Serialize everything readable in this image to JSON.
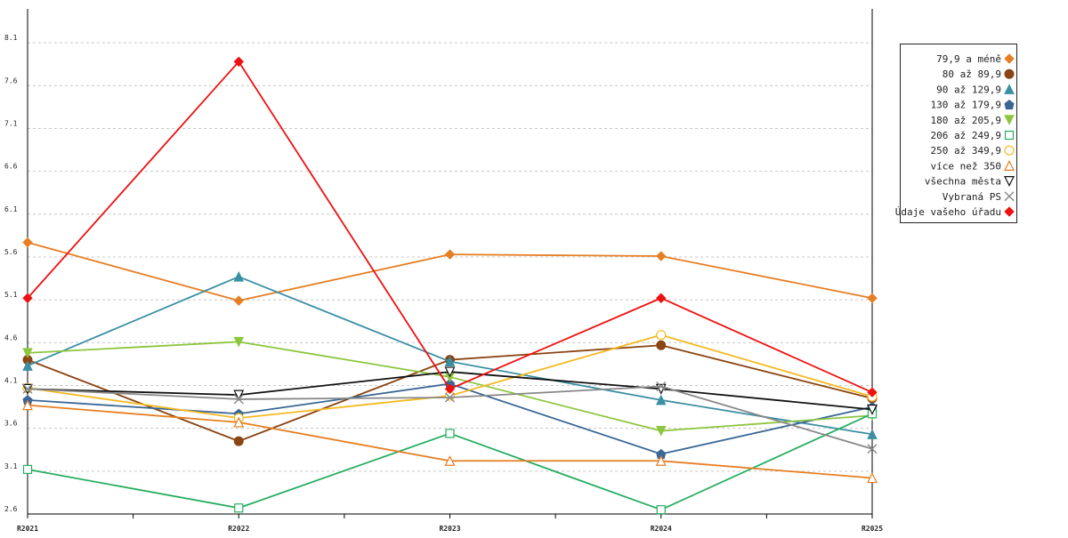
{
  "chart_data": {
    "type": "line",
    "title": "",
    "xlabel": "",
    "ylabel": "",
    "categories": [
      "R2021",
      "R2022",
      "R2023",
      "R2024",
      "R2025"
    ],
    "ylim": [
      2.6,
      8.6
    ],
    "yticks": [
      2.6,
      3.1,
      3.6,
      4.1,
      4.6,
      5.1,
      5.6,
      6.1,
      6.6,
      7.1,
      7.6,
      8.1
    ],
    "grid": true,
    "legend_position": "top-right",
    "series": [
      {
        "name": "79,9 a méně",
        "color": "#e67e22",
        "marker": "diamond",
        "values": [
          5.77,
          5.09,
          5.63,
          5.61,
          5.12
        ]
      },
      {
        "name": "80 až 89,9",
        "color": "#8b4513",
        "marker": "circle-filled",
        "values": [
          4.4,
          3.45,
          4.4,
          4.57,
          3.95
        ]
      },
      {
        "name": "90 až 129,9",
        "color": "#3a8fa3",
        "marker": "triangle-up-filled",
        "values": [
          4.33,
          5.37,
          4.38,
          3.93,
          3.53
        ]
      },
      {
        "name": "130 až 179,9",
        "color": "#3a6796",
        "marker": "pentagon-filled",
        "values": [
          3.93,
          3.77,
          4.12,
          3.3,
          3.85
        ]
      },
      {
        "name": "180 až 205,9",
        "color": "#8dc63f",
        "marker": "triangle-down-filled",
        "values": [
          4.48,
          4.61,
          4.2,
          3.57,
          3.75
        ]
      },
      {
        "name": "206 až 249,9",
        "color": "#27ae60",
        "marker": "square-open",
        "values": [
          3.12,
          2.67,
          3.54,
          2.65,
          3.77
        ]
      },
      {
        "name": "250 až 349,9",
        "color": "#f5b921",
        "marker": "circle-open",
        "values": [
          4.07,
          3.72,
          3.98,
          4.69,
          3.97
        ]
      },
      {
        "name": "více než 350",
        "color": "#e67e22",
        "marker": "triangle-up-open",
        "values": [
          3.87,
          3.67,
          3.22,
          3.22,
          3.02
        ]
      },
      {
        "name": "všechna města",
        "color": "#111111",
        "marker": "triangle-down-open",
        "values": [
          4.06,
          3.99,
          4.26,
          4.06,
          3.82
        ]
      },
      {
        "name": "Vybraná PS",
        "color": "#888888",
        "marker": "x",
        "values": [
          4.06,
          3.94,
          3.96,
          4.09,
          3.36
        ]
      },
      {
        "name": "Údaje vašeho úřadu",
        "color": "#ee1111",
        "marker": "diamond-red",
        "values": [
          5.12,
          7.88,
          4.06,
          5.12,
          4.02
        ]
      }
    ]
  }
}
